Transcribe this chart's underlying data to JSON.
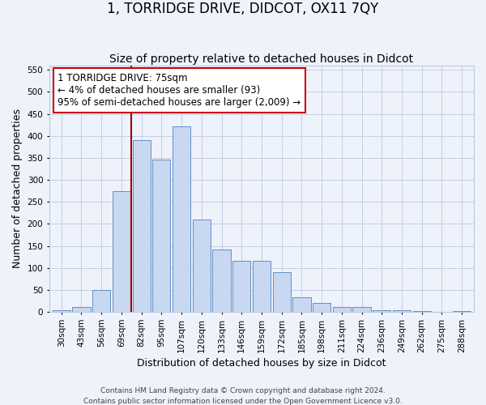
{
  "title": "1, TORRIDGE DRIVE, DIDCOT, OX11 7QY",
  "subtitle": "Size of property relative to detached houses in Didcot",
  "xlabel": "Distribution of detached houses by size in Didcot",
  "ylabel": "Number of detached properties",
  "categories": [
    "30sqm",
    "43sqm",
    "56sqm",
    "69sqm",
    "82sqm",
    "95sqm",
    "107sqm",
    "120sqm",
    "133sqm",
    "146sqm",
    "159sqm",
    "172sqm",
    "185sqm",
    "198sqm",
    "211sqm",
    "224sqm",
    "236sqm",
    "249sqm",
    "262sqm",
    "275sqm",
    "288sqm"
  ],
  "values": [
    5,
    12,
    50,
    275,
    390,
    347,
    421,
    210,
    143,
    117,
    117,
    90,
    34,
    20,
    11,
    12,
    5,
    5,
    2,
    0,
    3
  ],
  "bar_color": "#c8d8f0",
  "bar_edge_color": "#6090c8",
  "vline_x": 3.5,
  "vline_color": "#990000",
  "annotation_line1": "1 TORRIDGE DRIVE: 75sqm",
  "annotation_line2": "← 4% of detached houses are smaller (93)",
  "annotation_line3": "95% of semi-detached houses are larger (2,009) →",
  "annotation_box_facecolor": "#ffffff",
  "annotation_box_edgecolor": "#cc0000",
  "footnote1": "Contains HM Land Registry data © Crown copyright and database right 2024.",
  "footnote2": "Contains public sector information licensed under the Open Government Licence v3.0.",
  "bg_color": "#eef2fb",
  "plot_bg_color": "#eef2fb",
  "grid_color": "#c0c8e0",
  "ylim": [
    0,
    560
  ],
  "yticks": [
    0,
    50,
    100,
    150,
    200,
    250,
    300,
    350,
    400,
    450,
    500,
    550
  ],
  "title_fontsize": 12,
  "subtitle_fontsize": 10,
  "xlabel_fontsize": 9,
  "ylabel_fontsize": 9,
  "tick_fontsize": 7.5,
  "annot_fontsize": 8.5
}
